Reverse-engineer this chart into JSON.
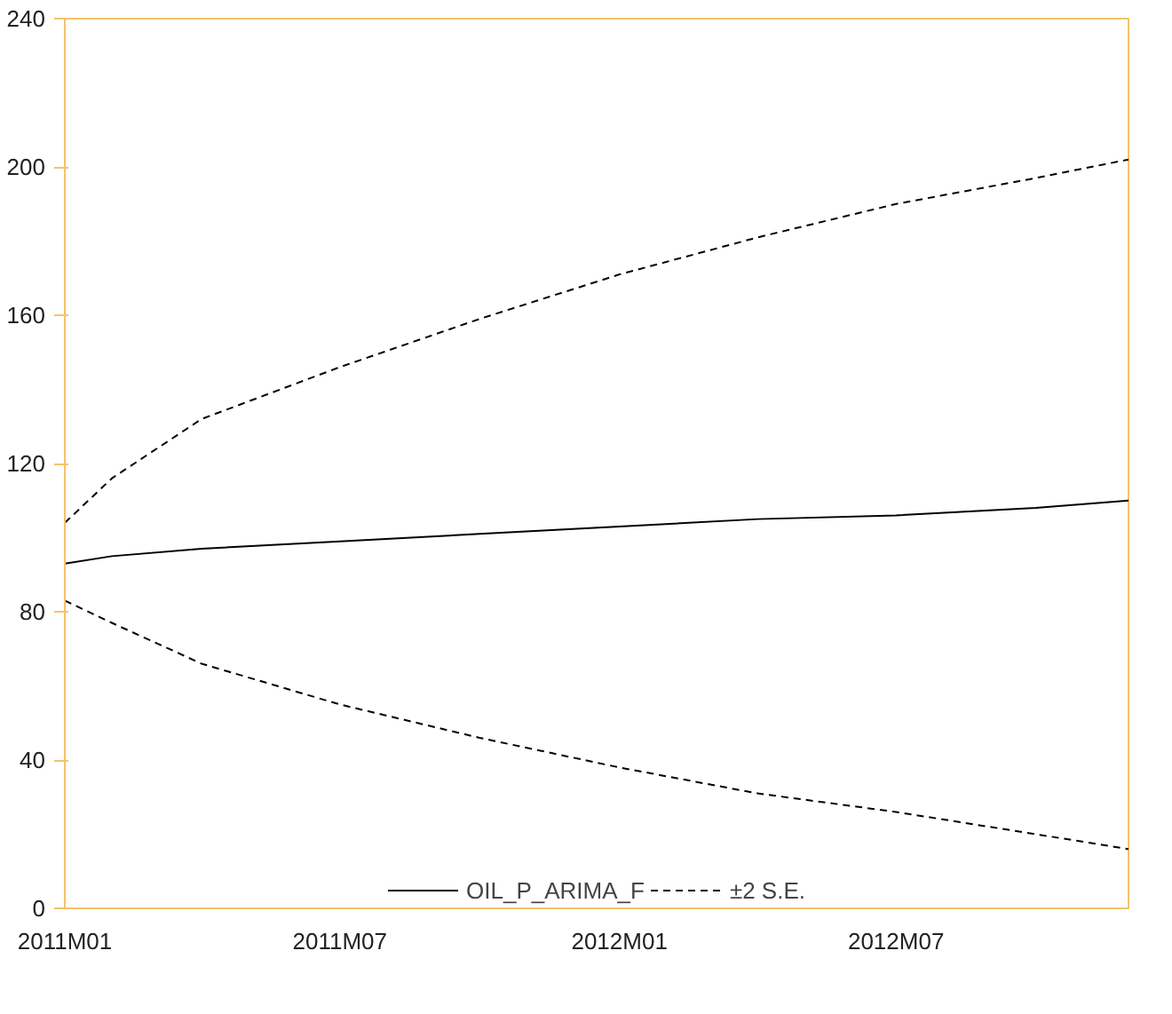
{
  "chart_data": {
    "type": "line",
    "x": [
      "2011-01",
      "2011-02",
      "2011-04",
      "2011-07",
      "2011-10",
      "2012-01",
      "2012-04",
      "2012-07",
      "2012-10",
      "2012-12"
    ],
    "series": [
      {
        "name": "OIL_P_ARIMA_F",
        "color": "#000000",
        "line_style": "solid",
        "values": [
          93,
          95,
          97,
          99,
          101,
          103,
          105,
          106,
          108,
          110
        ]
      },
      {
        "name": "±2 S.E.",
        "color": "#000000",
        "line_style": "dashed",
        "values": [
          104,
          116,
          132,
          146,
          159,
          171,
          181,
          190,
          197,
          202
        ]
      },
      {
        "color": "#000000",
        "line_style": "dashed",
        "values": [
          83,
          77,
          66,
          55,
          46,
          38,
          31,
          26,
          20,
          16
        ]
      }
    ],
    "xlim": [
      "2011-01",
      "2012-12"
    ],
    "xticks": [
      {
        "value": "2011-01",
        "label": "2011M01"
      },
      {
        "value": "2011-07",
        "label": "2011M07"
      },
      {
        "value": "2012-01",
        "label": "2012M01"
      },
      {
        "value": "2012-07",
        "label": "2012M07"
      }
    ],
    "ylim": [
      0,
      240
    ],
    "yticks": [
      0,
      40,
      80,
      120,
      160,
      200,
      240
    ],
    "grid": false,
    "legend": "bottom",
    "marker": "none"
  }
}
